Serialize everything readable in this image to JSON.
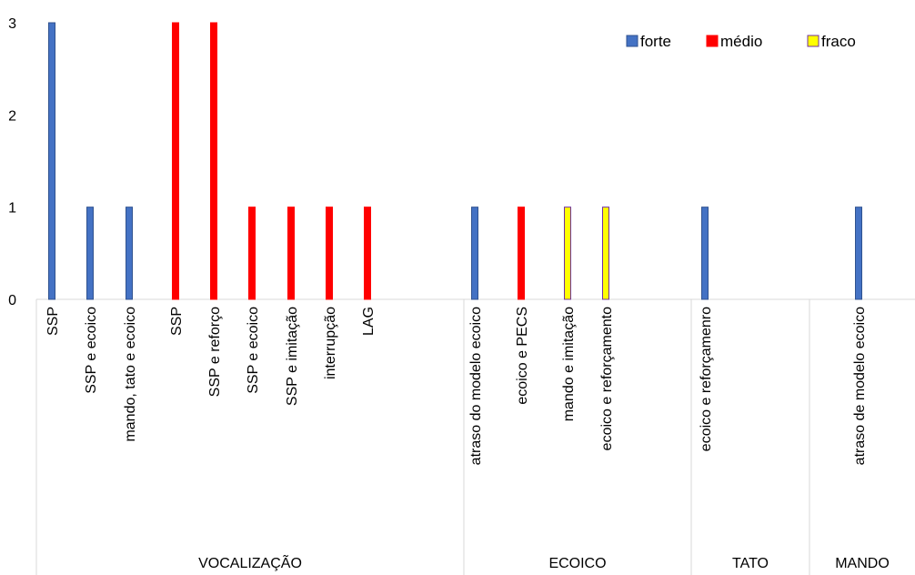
{
  "chart_data": {
    "type": "bar",
    "title": "",
    "xlabel": "",
    "ylabel": "",
    "ylim": [
      0,
      3
    ],
    "yticks": [
      0,
      1,
      2,
      3
    ],
    "grid": false,
    "legend_position": "top-right",
    "series": [
      {
        "name": "forte",
        "color": "#4472C4",
        "border": "#2F528F"
      },
      {
        "name": "médio",
        "color": "#FF0000",
        "border": "#FF0000"
      },
      {
        "name": "fraco",
        "color": "#FFFF00",
        "border": "#7030A0"
      }
    ],
    "categories": [
      {
        "label": "SSP",
        "group": "VOCALIZAÇÃO",
        "series": "forte",
        "value": 3
      },
      {
        "label": "SSP e ecoico",
        "group": "VOCALIZAÇÃO",
        "series": "forte",
        "value": 1
      },
      {
        "label": "mando, tato e ecoico",
        "group": "VOCALIZAÇÃO",
        "series": "forte",
        "value": 1
      },
      {
        "label": "SSP",
        "group": "VOCALIZAÇÃO",
        "series": "médio",
        "value": 3
      },
      {
        "label": "SSP e reforço",
        "group": "VOCALIZAÇÃO",
        "series": "médio",
        "value": 3
      },
      {
        "label": "SSP e ecoico",
        "group": "VOCALIZAÇÃO",
        "series": "médio",
        "value": 1
      },
      {
        "label": "SSP e imitação",
        "group": "VOCALIZAÇÃO",
        "series": "médio",
        "value": 1
      },
      {
        "label": "interrupção",
        "group": "VOCALIZAÇÃO",
        "series": "médio",
        "value": 1
      },
      {
        "label": "LAG",
        "group": "VOCALIZAÇÃO",
        "series": "médio",
        "value": 1
      },
      {
        "label": "atraso do modelo ecoico",
        "group": "ECOICO",
        "series": "forte",
        "value": 1
      },
      {
        "label": "ecoico e PECS",
        "group": "ECOICO",
        "series": "médio",
        "value": 1
      },
      {
        "label": "mando e imitação",
        "group": "ECOICO",
        "series": "fraco",
        "value": 1
      },
      {
        "label": "ecoico e reforçamento",
        "group": "ECOICO",
        "series": "fraco",
        "value": 1
      },
      {
        "label": "ecoico e reforçamenro",
        "group": "TATO",
        "series": "forte",
        "value": 1
      },
      {
        "label": "atraso de modelo ecoico",
        "group": "MANDO",
        "series": "forte",
        "value": 1
      }
    ],
    "groups": [
      "VOCALIZAÇÃO",
      "ECOICO",
      "TATO",
      "MANDO"
    ]
  }
}
